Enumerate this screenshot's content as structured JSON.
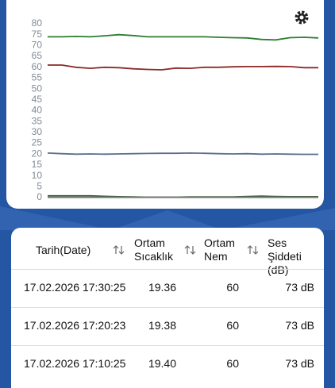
{
  "chart_data": {
    "type": "line",
    "ylim": [
      0,
      80
    ],
    "yticks": [
      0,
      5,
      10,
      15,
      20,
      25,
      30,
      35,
      40,
      45,
      50,
      55,
      60,
      65,
      70,
      75,
      80
    ],
    "series": [
      {
        "color": "#2e7d32",
        "values": [
          74,
          74,
          74.2,
          74,
          74.5,
          75,
          74.6,
          74,
          74,
          74,
          74,
          74,
          73.8,
          73.6,
          73.5,
          72.8,
          72.6,
          73.6,
          73.8,
          73.5
        ]
      },
      {
        "color": "#8b2a2a",
        "values": [
          61,
          61,
          60,
          59.5,
          60,
          59.8,
          59.3,
          59,
          58.8,
          59.6,
          59.5,
          60,
          60,
          60.2,
          60.3,
          60.3,
          60.4,
          60.3,
          59.8,
          59.8
        ]
      },
      {
        "color": "#5a6f8a",
        "values": [
          20.5,
          20.2,
          20,
          20.1,
          20,
          20.1,
          20.2,
          20.3,
          20.4,
          20.4,
          20.5,
          20.4,
          20.2,
          20.1,
          20.2,
          20,
          20.1,
          20,
          19.9,
          19.9
        ]
      },
      {
        "color": "#3d5f3d",
        "values": [
          0.8,
          0.8,
          0.8,
          0.8,
          0.6,
          0.4,
          0.3,
          0.2,
          0.2,
          0.2,
          0.3,
          0.3,
          0.3,
          0.3,
          0.5,
          0.7,
          0.5,
          0.4,
          0.4,
          0.4
        ]
      },
      {
        "color": "#777777",
        "values": [
          0.1,
          0.1,
          0.1,
          0.1,
          0.1,
          0.1,
          0.1,
          0.1,
          0.1,
          0.1,
          0.1,
          0.1,
          0.1,
          0.1,
          0.1,
          0.1,
          0.1,
          0.1,
          0.1,
          0.1
        ]
      }
    ]
  },
  "table": {
    "header": [
      "Tarih(Date)",
      "Ortam Sıcaklık",
      "Ortam Nem",
      "Ses Şiddeti (dB)"
    ],
    "rows": [
      [
        "17.02.2026 17:30:25",
        "19.36",
        "60",
        "73 dB"
      ],
      [
        "17.02.2026 17:20:23",
        "19.38",
        "60",
        "73 dB"
      ],
      [
        "17.02.2026 17:10:25",
        "19.40",
        "60",
        "73 dB"
      ]
    ]
  }
}
